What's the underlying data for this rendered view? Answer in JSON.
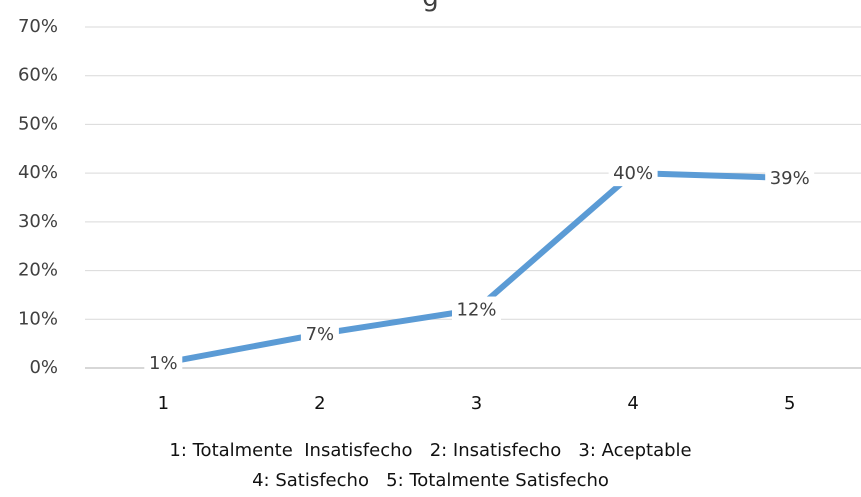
{
  "chart_data": {
    "type": "line",
    "title": "g",
    "categories": [
      "1",
      "2",
      "3",
      "4",
      "5"
    ],
    "values": [
      1,
      7,
      12,
      40,
      39
    ],
    "data_labels": [
      "1%",
      "7%",
      "12%",
      "40%",
      "39%"
    ],
    "y_ticks": [
      "0%",
      "10%",
      "20%",
      "30%",
      "40%",
      "50%",
      "60%",
      "70%"
    ],
    "ylim": [
      0,
      70
    ],
    "grid": true,
    "legend_note": [
      "1: Totalmente  Insatisfecho   2: Insatisfecho   3: Aceptable",
      "4: Satisfecho   5: Totalmente Satisfecho"
    ],
    "colors": {
      "line": "#5B9BD5",
      "grid": "#D9D9D9",
      "axis": "#BFBFBF",
      "text": "#404040"
    }
  }
}
